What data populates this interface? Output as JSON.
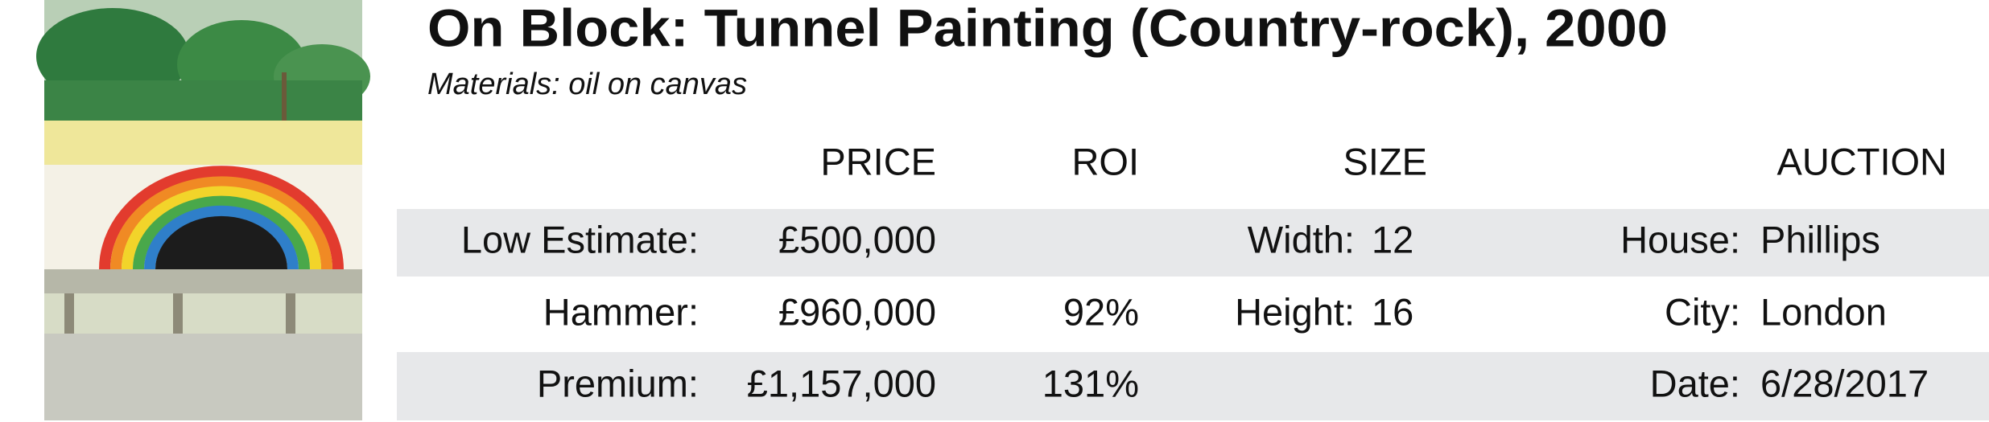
{
  "header": {
    "title": "On Block: Tunnel Painting (Country-rock), 2000",
    "subtitle": "Materials: oil on canvas"
  },
  "table": {
    "columns": [
      "PRICE",
      "ROI",
      "SIZE",
      "AUCTION"
    ],
    "rows": [
      {
        "label": "Low Estimate:",
        "price": "£500,000",
        "size_label": "Width:",
        "size_value": "12",
        "auction_label": "House:",
        "auction_value": "Phillips"
      },
      {
        "label": "Hammer:",
        "price": "£960,000",
        "roi": "92%",
        "size_label": "Height:",
        "size_value": "16",
        "auction_label": "City:",
        "auction_value": "London"
      },
      {
        "label": "Premium:",
        "price": "£1,157,000",
        "roi": "131%",
        "auction_label": "Date:",
        "auction_value": "6/28/2017"
      }
    ]
  }
}
